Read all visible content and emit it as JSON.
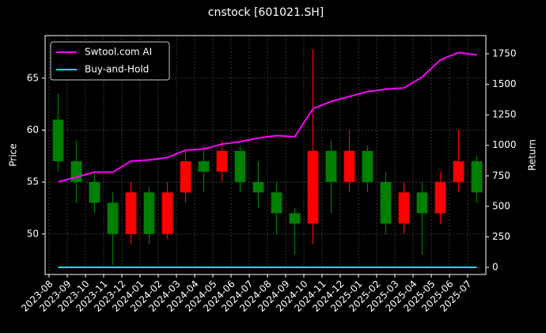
{
  "chart_data": {
    "type": "candlestick",
    "title": "cnstock [601021.SH]",
    "ylabel": "Price",
    "y2label": "Return",
    "x": [
      "2023-08",
      "2023-09",
      "2023-10",
      "2023-11",
      "2023-12",
      "2024-01",
      "2024-02",
      "2024-03",
      "2024-04",
      "2024-05",
      "2024-06",
      "2024-07",
      "2024-08",
      "2024-09",
      "2024-10",
      "2024-11",
      "2024-12",
      "2025-01",
      "2025-02",
      "2025-03",
      "2025-04",
      "2025-05",
      "2025-06",
      "2025-07"
    ],
    "open": [
      61,
      57,
      55,
      53,
      50,
      54,
      50,
      54,
      57,
      56,
      58,
      55,
      54,
      52,
      51,
      58,
      55,
      58,
      55,
      51,
      54,
      52,
      55,
      57
    ],
    "high": [
      63.5,
      59,
      56,
      54,
      55,
      54.5,
      55,
      58,
      58.5,
      59,
      58.5,
      57,
      55,
      52.5,
      67.8,
      59,
      60,
      58.5,
      56,
      55,
      55,
      56,
      60,
      57.5
    ],
    "low": [
      56,
      53,
      52,
      47,
      49,
      49,
      49.5,
      53,
      54,
      55,
      54,
      52.5,
      50,
      48,
      49,
      52,
      54,
      54,
      50,
      50,
      48,
      51,
      54,
      53
    ],
    "close": [
      57,
      55,
      53,
      50,
      54,
      50,
      54,
      57,
      56,
      58,
      55,
      54,
      52,
      51,
      58,
      55,
      58,
      55,
      51,
      54,
      52,
      55,
      57,
      54
    ],
    "up_color": "#ff0000",
    "down_color": "#008000",
    "ylim": [
      46.1,
      69.1
    ],
    "yticks": [
      50,
      55,
      60,
      65
    ],
    "y2lim": [
      -58,
      1899
    ],
    "y2ticks": [
      0,
      250,
      500,
      750,
      1000,
      1250,
      1500,
      1750
    ],
    "grid": true,
    "legend": "upper left",
    "series": [
      {
        "name": "Swtool.com AI",
        "color": "#ff00ff",
        "axis": "y2",
        "values": [
          700,
          740,
          780,
          780,
          870,
          880,
          900,
          960,
          970,
          1010,
          1030,
          1060,
          1080,
          1070,
          1300,
          1360,
          1400,
          1440,
          1460,
          1470,
          1560,
          1700,
          1760,
          1740
        ]
      },
      {
        "name": "Buy-and-Hold",
        "color": "#00e5ee",
        "axis": "y2",
        "values": [
          0,
          0,
          0,
          0,
          0,
          0,
          0,
          0,
          0,
          0,
          0,
          0,
          0,
          0,
          0,
          0,
          0,
          0,
          0,
          0,
          0,
          0,
          0,
          0
        ]
      }
    ]
  }
}
